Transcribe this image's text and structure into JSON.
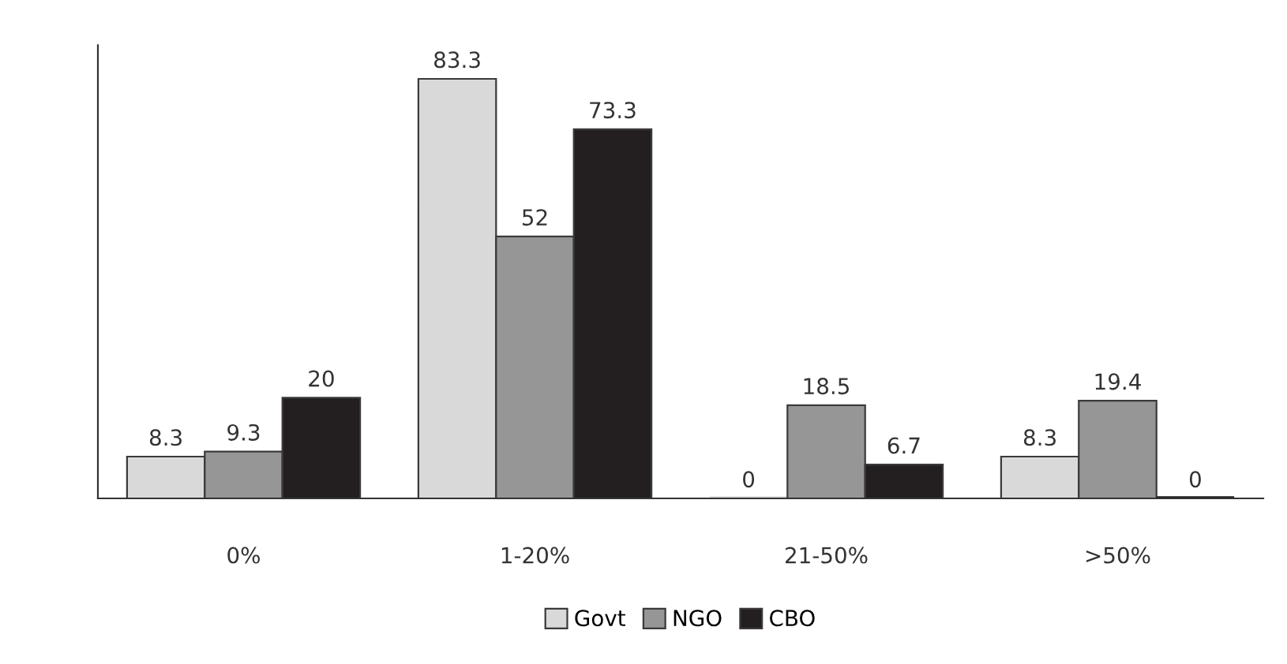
{
  "chart_data": {
    "type": "bar",
    "categories": [
      "0%",
      "1-20%",
      "21-50%",
      ">50%"
    ],
    "series": [
      {
        "name": "Govt",
        "color": "#d9d9d9",
        "values": [
          8.3,
          83.3,
          0,
          8.3
        ]
      },
      {
        "name": "NGO",
        "color": "#969696",
        "values": [
          9.3,
          52,
          18.5,
          19.4
        ]
      },
      {
        "name": "CBO",
        "color": "#231f20",
        "values": [
          20,
          73.3,
          6.7,
          0
        ]
      }
    ],
    "data_labels": true,
    "grid": false,
    "legend": "bottom"
  }
}
